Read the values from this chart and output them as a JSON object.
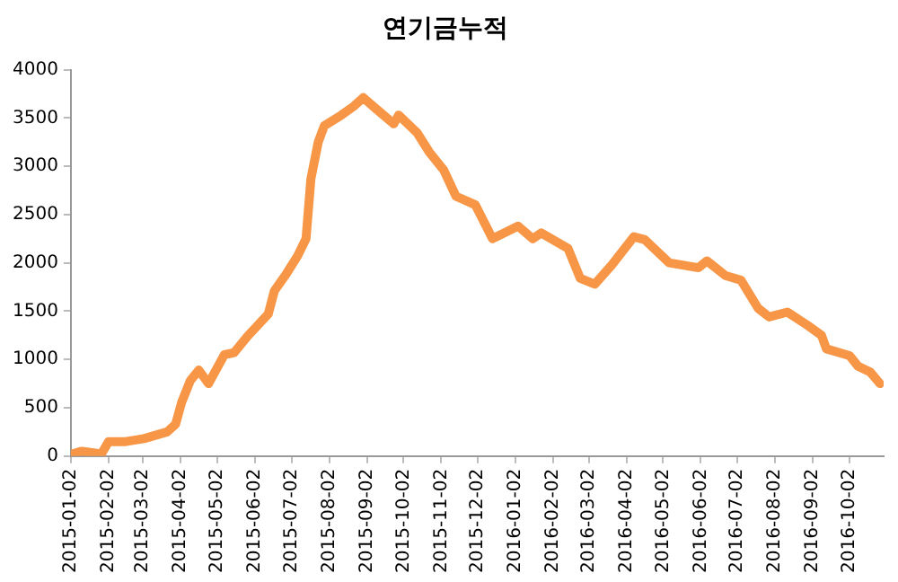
{
  "chart_data": {
    "type": "line",
    "title": "연기금누적",
    "x": [
      "2015-01-03",
      "2015-01-11",
      "2015-01-22",
      "2015-01-27",
      "2015-02-02",
      "2015-02-16",
      "2015-03-03",
      "2015-03-22",
      "2015-03-29",
      "2015-04-03",
      "2015-04-10",
      "2015-04-17",
      "2015-04-25",
      "2015-05-08",
      "2015-05-16",
      "2015-05-27",
      "2015-06-13",
      "2015-06-18",
      "2015-06-28",
      "2015-07-07",
      "2015-07-14",
      "2015-07-18",
      "2015-07-24",
      "2015-07-29",
      "2015-08-12",
      "2015-08-22",
      "2015-08-30",
      "2015-09-09",
      "2015-09-24",
      "2015-09-28",
      "2015-10-13",
      "2015-10-23",
      "2015-11-04",
      "2015-11-14",
      "2015-11-30",
      "2015-12-14",
      "2016-01-04",
      "2016-01-16",
      "2016-01-23",
      "2016-02-14",
      "2016-02-24",
      "2016-03-07",
      "2016-03-21",
      "2016-04-08",
      "2016-04-17",
      "2016-05-07",
      "2016-05-31",
      "2016-06-07",
      "2016-06-22",
      "2016-07-05",
      "2016-07-19",
      "2016-07-28",
      "2016-08-12",
      "2016-08-29",
      "2016-09-09",
      "2016-09-13",
      "2016-10-02",
      "2016-10-09",
      "2016-10-19",
      "2016-10-27"
    ],
    "series": [
      {
        "color": "#f79646",
        "values": [
          20,
          50,
          30,
          20,
          150,
          150,
          180,
          250,
          330,
          560,
          780,
          890,
          750,
          1050,
          1070,
          1240,
          1470,
          1710,
          1890,
          2070,
          2250,
          2870,
          3250,
          3420,
          3530,
          3620,
          3710,
          3600,
          3440,
          3530,
          3350,
          3150,
          2960,
          2690,
          2600,
          2250,
          2380,
          2250,
          2310,
          2150,
          1840,
          1780,
          1980,
          2270,
          2240,
          2000,
          1950,
          2020,
          1870,
          1820,
          1530,
          1440,
          1490,
          1350,
          1250,
          1110,
          1040,
          930,
          870,
          750
        ]
      }
    ],
    "xlim": [
      "2015-01-02",
      "2016-10-30"
    ],
    "xticks": [
      "2015-01-02",
      "2015-02-02",
      "2015-03-02",
      "2015-04-02",
      "2015-05-02",
      "2015-06-02",
      "2015-07-02",
      "2015-08-02",
      "2015-09-02",
      "2015-10-02",
      "2015-11-02",
      "2015-12-02",
      "2016-01-02",
      "2016-02-02",
      "2016-03-02",
      "2016-04-02",
      "2016-05-02",
      "2016-06-02",
      "2016-07-02",
      "2016-08-02",
      "2016-09-02",
      "2016-10-02"
    ],
    "ylim": [
      0,
      4000
    ],
    "yticks": [
      0,
      500,
      1000,
      1500,
      2000,
      2500,
      3000,
      3500,
      4000
    ],
    "grid": false,
    "legend": false,
    "marker": "none",
    "line_style": "solid"
  }
}
